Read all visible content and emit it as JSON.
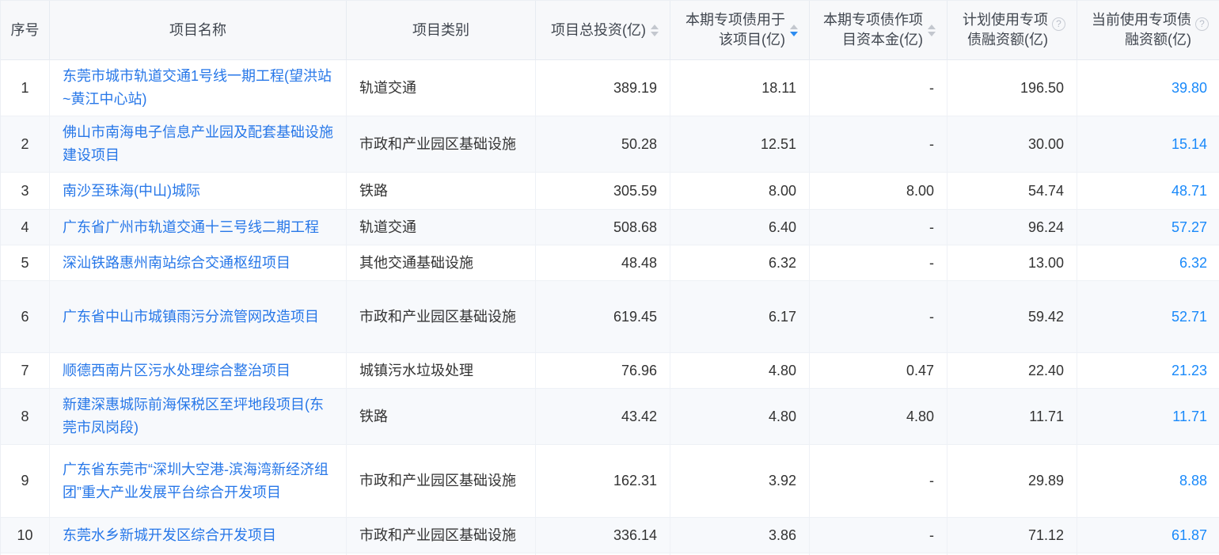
{
  "table": {
    "columns": [
      {
        "key": "index",
        "label": "序号",
        "align": "center",
        "sorter": false,
        "sort": null,
        "help": false,
        "link": false,
        "accent": false
      },
      {
        "key": "name",
        "label": "项目名称",
        "align": "left",
        "sorter": false,
        "sort": null,
        "help": false,
        "link": true,
        "accent": false
      },
      {
        "key": "category",
        "label": "项目类别",
        "align": "left",
        "sorter": false,
        "sort": null,
        "help": false,
        "link": false,
        "accent": false
      },
      {
        "key": "total_investment",
        "label": "项目总投资(亿)",
        "align": "right",
        "sorter": true,
        "sort": "none",
        "help": false,
        "link": false,
        "accent": false
      },
      {
        "key": "bond_used",
        "label": "本期专项债用于该项目(亿)",
        "align": "right",
        "sorter": true,
        "sort": "desc",
        "help": false,
        "link": false,
        "accent": false
      },
      {
        "key": "bond_capital",
        "label": "本期专项债作项目资本金(亿)",
        "align": "right",
        "sorter": true,
        "sort": "none",
        "help": false,
        "link": false,
        "accent": false
      },
      {
        "key": "planned_amount",
        "label": "计划使用专项债融资额(亿)",
        "align": "right",
        "sorter": false,
        "sort": null,
        "help": true,
        "link": false,
        "accent": false
      },
      {
        "key": "current_amount",
        "label": "当前使用专项债融资额(亿)",
        "align": "right",
        "sorter": false,
        "sort": null,
        "help": true,
        "link": false,
        "accent": true
      }
    ],
    "rows": [
      {
        "index": "1",
        "name": "东莞市城市轨道交通1号线一期工程(望洪站~黄江中心站)",
        "category": "轨道交通",
        "total_investment": "389.19",
        "bond_used": "18.11",
        "bond_capital": "-",
        "planned_amount": "196.50",
        "current_amount": "39.80"
      },
      {
        "index": "2",
        "name": "佛山市南海电子信息产业园及配套基础设施建设项目",
        "category": "市政和产业园区基础设施",
        "total_investment": "50.28",
        "bond_used": "12.51",
        "bond_capital": "-",
        "planned_amount": "30.00",
        "current_amount": "15.14"
      },
      {
        "index": "3",
        "name": "南沙至珠海(中山)城际",
        "category": "铁路",
        "total_investment": "305.59",
        "bond_used": "8.00",
        "bond_capital": "8.00",
        "planned_amount": "54.74",
        "current_amount": "48.71"
      },
      {
        "index": "4",
        "name": "广东省广州市轨道交通十三号线二期工程",
        "category": "轨道交通",
        "total_investment": "508.68",
        "bond_used": "6.40",
        "bond_capital": "-",
        "planned_amount": "96.24",
        "current_amount": "57.27"
      },
      {
        "index": "5",
        "name": "深汕铁路惠州南站综合交通枢纽项目",
        "category": "其他交通基础设施",
        "total_investment": "48.48",
        "bond_used": "6.32",
        "bond_capital": "-",
        "planned_amount": "13.00",
        "current_amount": "6.32"
      },
      {
        "index": "6",
        "name": "广东省中山市城镇雨污分流管网改造项目",
        "category": "市政和产业园区基础设施",
        "total_investment": "619.45",
        "bond_used": "6.17",
        "bond_capital": "-",
        "planned_amount": "59.42",
        "current_amount": "52.71"
      },
      {
        "index": "7",
        "name": "顺德西南片区污水处理综合整治项目",
        "category": "城镇污水垃圾处理",
        "total_investment": "76.96",
        "bond_used": "4.80",
        "bond_capital": "0.47",
        "planned_amount": "22.40",
        "current_amount": "21.23"
      },
      {
        "index": "8",
        "name": "新建深惠城际前海保税区至坪地段项目(东莞市凤岗段)",
        "category": "铁路",
        "total_investment": "43.42",
        "bond_used": "4.80",
        "bond_capital": "4.80",
        "planned_amount": "11.71",
        "current_amount": "11.71"
      },
      {
        "index": "9",
        "name": "广东省东莞市“深圳大空港-滨海湾新经济组团”重大产业发展平台综合开发项目",
        "category": "市政和产业园区基础设施",
        "total_investment": "162.31",
        "bond_used": "3.92",
        "bond_capital": "-",
        "planned_amount": "29.89",
        "current_amount": "8.88"
      },
      {
        "index": "10",
        "name": "东莞水乡新城开发区综合开发项目",
        "category": "市政和产业园区基础设施",
        "total_investment": "336.14",
        "bond_used": "3.86",
        "bond_capital": "-",
        "planned_amount": "71.12",
        "current_amount": "61.87"
      }
    ]
  },
  "icons": {
    "help_glyph": "?",
    "sort_up": "caret-up",
    "sort_down": "caret-down"
  },
  "colors": {
    "link_blue": "#2777e8",
    "accent_blue": "#1989fa",
    "sort_active": "#2d8cf0",
    "sort_inactive": "#c3c7ce",
    "header_bg": "#f7f8fa",
    "stripe_bg": "#f7f9fc"
  }
}
